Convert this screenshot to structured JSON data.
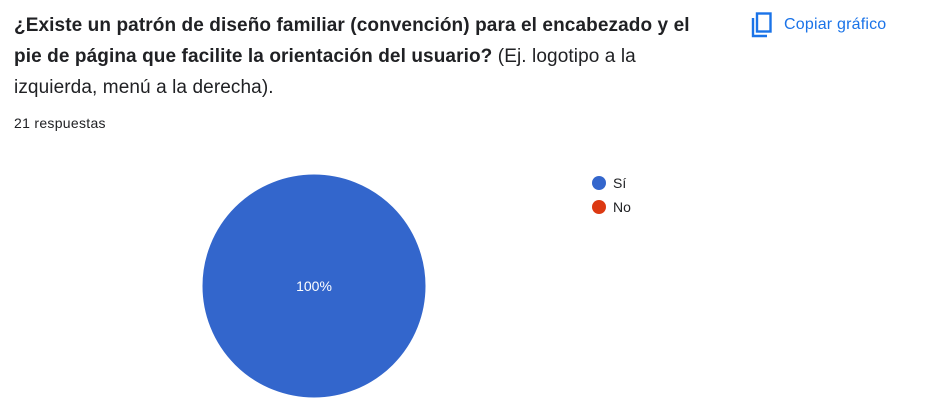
{
  "question": {
    "title_bold": "¿Existe un patrón de diseño familiar (convención) para el encabezado y el pie de página que facilite la orientación del usuario?",
    "title_rest": " (Ej. logotipo a la izquierda, menú a la derecha)."
  },
  "responses_label": "21 respuestas",
  "copy_button": {
    "label": "Copiar gráfico",
    "icon": "copy-icon",
    "color": "#1a73e8"
  },
  "chart_data": {
    "type": "pie",
    "categories": [
      "Sí",
      "No"
    ],
    "values": [
      100,
      0
    ],
    "colors": [
      "#3366cc",
      "#dc3912"
    ],
    "data_labels": [
      "100%",
      ""
    ],
    "legend_position": "right"
  }
}
